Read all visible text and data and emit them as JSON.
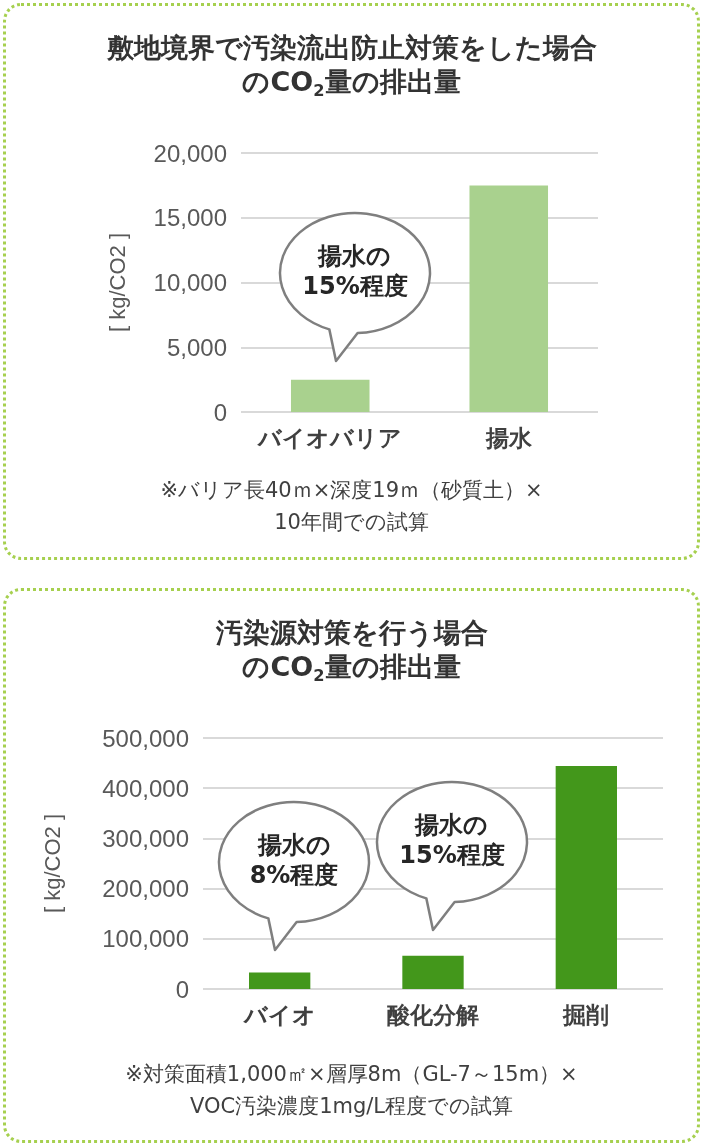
{
  "chart_data": [
    {
      "type": "bar",
      "title": "敷地境界で汚染流出防止対策をした場合のCO$_{2}$量の排出量",
      "ylabel": "[ kg/CO2 ]",
      "categories": [
        "バイオバリア",
        "揚水"
      ],
      "values": [
        2500,
        17500
      ],
      "color": "#a9d18e",
      "ylim": [
        0,
        20000
      ],
      "yticks": [
        0,
        {
          "value": 5000,
          "label": "5,000"
        },
        {
          "value": 10000,
          "label": "10,000"
        },
        {
          "value": 15000,
          "label": "15,000"
        },
        {
          "value": 20000,
          "label": "20,000"
        }
      ],
      "grid": "y",
      "annotations": [
        "揚水の\n15%程度",
        "※バリア長40ｍ×深度19ｍ（砂質土）×\n10年間での試算"
      ]
    },
    {
      "type": "bar",
      "title": "汚染源対策を行う場合のCO$_{2}$量の排出量",
      "ylabel": "[ kg/CO2 ]",
      "categories": [
        "バイオ",
        "酸化分解",
        "掘削"
      ],
      "values": [
        33000,
        66000,
        444000
      ],
      "color": "#43971b",
      "ylim": [
        0,
        500000
      ],
      "yticks": [
        0,
        {
          "value": 100000,
          "label": "100,000"
        },
        {
          "value": 200000,
          "label": "200,000"
        },
        {
          "value": 300000,
          "label": "300,000"
        },
        {
          "value": 400000,
          "label": "400,000"
        },
        {
          "value": 500000,
          "label": "500,000"
        }
      ],
      "grid": "y",
      "annotations": [
        "揚水の\n8%程度",
        "揚水の\n15%程度",
        "※対策面積1,000㎡×層厚8m（GL-7～15m）×\nVOC汚染濃度1mg/L程度での試算"
      ]
    }
  ]
}
